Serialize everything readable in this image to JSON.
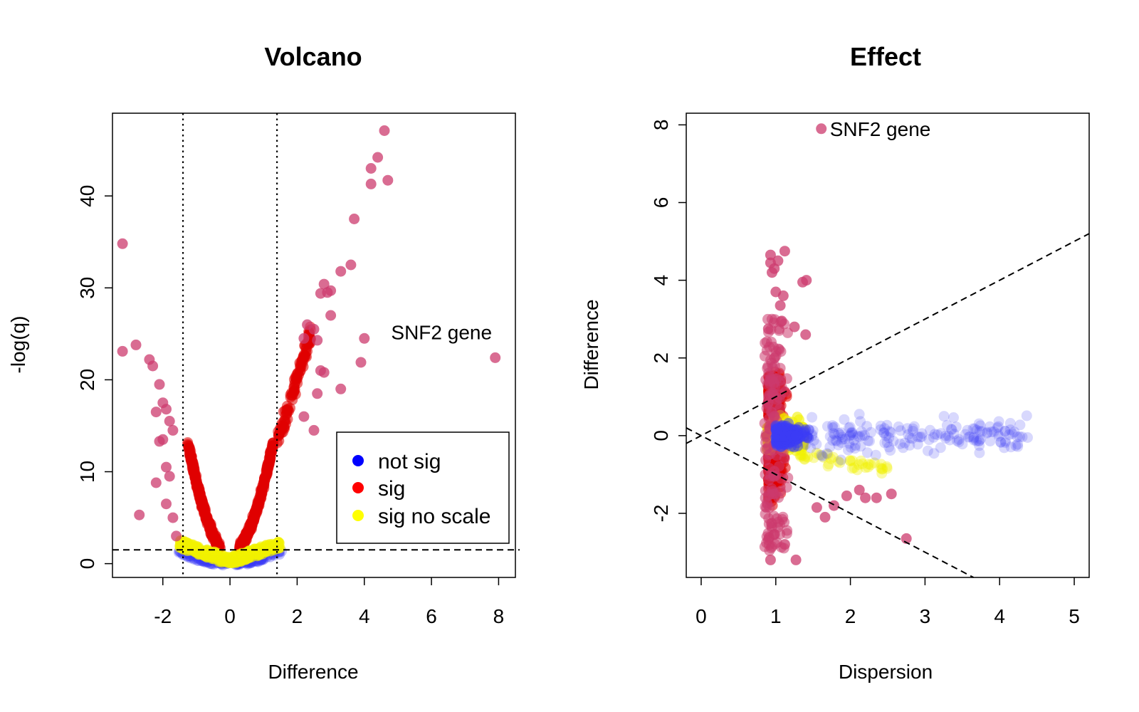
{
  "colors": {
    "not_sig": "#3b3bf5",
    "sig": "#e00000",
    "sig_no_scale": "#f2f200",
    "snf2": "#cc3b6e",
    "legend_not_sig": "#0000ff",
    "legend_sig": "#ff0000",
    "legend_sig_no_scale": "#ffff00"
  },
  "chart_data": [
    {
      "type": "scatter",
      "title": "Volcano",
      "xlabel": "Difference",
      "ylabel": "-log(q)",
      "xlim": [
        -3.5,
        8.5
      ],
      "ylim": [
        -1.5,
        49
      ],
      "xticks": [
        "-2",
        "0",
        "2",
        "4",
        "6",
        "8"
      ],
      "xtick_values": [
        -2,
        0,
        2,
        4,
        6,
        8
      ],
      "yticks": [
        "0",
        "10",
        "20",
        "30",
        "40"
      ],
      "ytick_values": [
        0,
        10,
        20,
        30,
        40
      ],
      "reference_lines": {
        "vertical_dotted": [
          -1.4,
          1.4
        ],
        "horizontal_dashed": [
          1.5
        ]
      },
      "legend": {
        "position": "bottom-right",
        "entries": [
          {
            "label": "not sig",
            "color_key": "legend_not_sig"
          },
          {
            "label": "sig",
            "color_key": "legend_sig"
          },
          {
            "label": "sig no scale",
            "color_key": "legend_sig_no_scale"
          }
        ]
      },
      "annotation": {
        "text": "SNF2 gene",
        "x": 6.3,
        "y": 25.2
      },
      "highlight_points": [
        [
          -3.2,
          34.8
        ],
        [
          -3.2,
          23.1
        ],
        [
          -2.8,
          23.8
        ],
        [
          -2.7,
          5.3
        ],
        [
          -2.4,
          22.2
        ],
        [
          -2.3,
          21.5
        ],
        [
          -2.1,
          19.5
        ],
        [
          -2.0,
          17.5
        ],
        [
          -1.9,
          16.8
        ],
        [
          -2.2,
          16.5
        ],
        [
          -2.0,
          13.5
        ],
        [
          -1.8,
          15.5
        ],
        [
          -1.7,
          14.5
        ],
        [
          -2.1,
          13.3
        ],
        [
          -1.9,
          10.5
        ],
        [
          -2.2,
          8.8
        ],
        [
          -1.8,
          9.5
        ],
        [
          -1.9,
          6.5
        ],
        [
          -1.7,
          5.0
        ],
        [
          -1.6,
          3.0
        ],
        [
          2.3,
          26.0
        ],
        [
          2.5,
          25.5
        ],
        [
          2.2,
          24.5
        ],
        [
          2.6,
          24.3
        ],
        [
          2.7,
          29.4
        ],
        [
          2.8,
          30.4
        ],
        [
          2.9,
          29.5
        ],
        [
          3.0,
          29.7
        ],
        [
          3.0,
          27.0
        ],
        [
          3.3,
          31.8
        ],
        [
          3.6,
          32.5
        ],
        [
          3.7,
          37.5
        ],
        [
          4.0,
          24.5
        ],
        [
          3.9,
          21.9
        ],
        [
          3.3,
          19.0
        ],
        [
          2.7,
          21.0
        ],
        [
          2.8,
          20.8
        ],
        [
          2.6,
          18.5
        ],
        [
          2.2,
          16.0
        ],
        [
          2.5,
          14.5
        ],
        [
          4.2,
          43.0
        ],
        [
          4.2,
          41.3
        ],
        [
          4.4,
          44.2
        ],
        [
          4.6,
          47.1
        ],
        [
          4.7,
          41.7
        ],
        [
          7.9,
          22.4
        ]
      ],
      "series": [
        {
          "name": "not sig",
          "color_key": "not_sig",
          "description": "near zero, |Difference| < 1.4"
        },
        {
          "name": "sig",
          "color_key": "sig",
          "description": "V-shaped arms"
        },
        {
          "name": "sig no scale",
          "color_key": "sig_no_scale",
          "description": "bottom of V"
        }
      ]
    },
    {
      "type": "scatter",
      "title": "Effect",
      "xlabel": "Dispersion",
      "ylabel": "Difference",
      "xlim": [
        -0.2,
        5.2
      ],
      "ylim": [
        -3.65,
        8.3
      ],
      "xticks": [
        "0",
        "1",
        "2",
        "3",
        "4",
        "5"
      ],
      "xtick_values": [
        0,
        1,
        2,
        3,
        4,
        5
      ],
      "yticks": [
        "-2",
        "0",
        "2",
        "4",
        "6",
        "8"
      ],
      "ytick_values": [
        -2,
        0,
        2,
        4,
        6,
        8
      ],
      "reference_lines": {
        "dashed_slopes": [
          1.0,
          -1.0
        ]
      },
      "annotation": {
        "text": "SNF2 gene",
        "x": 1.61,
        "y": 7.9
      },
      "highlight_points": [
        [
          0.93,
          4.65
        ],
        [
          0.93,
          4.45
        ],
        [
          0.95,
          4.2
        ],
        [
          0.98,
          4.3
        ],
        [
          1.12,
          4.75
        ],
        [
          1.03,
          4.5
        ],
        [
          1.36,
          3.95
        ],
        [
          1.41,
          4.0
        ],
        [
          1.1,
          3.6
        ],
        [
          1.06,
          3.35
        ],
        [
          1.0,
          3.7
        ],
        [
          1.08,
          2.95
        ],
        [
          1.25,
          2.8
        ],
        [
          1.4,
          2.6
        ],
        [
          0.9,
          2.75
        ],
        [
          1.27,
          -3.2
        ],
        [
          0.93,
          -3.2
        ],
        [
          1.12,
          -2.8
        ],
        [
          2.75,
          -2.65
        ],
        [
          1.66,
          -2.1
        ],
        [
          2.35,
          -1.6
        ],
        [
          2.55,
          -1.5
        ],
        [
          2.2,
          -1.6
        ],
        [
          2.12,
          -1.4
        ],
        [
          1.78,
          -1.8
        ],
        [
          1.55,
          -1.85
        ],
        [
          1.95,
          -1.55
        ],
        [
          1.61,
          7.9
        ]
      ],
      "series": [
        {
          "name": "sig",
          "color_key": "snf2",
          "description": "column near Dispersion 1"
        },
        {
          "name": "sig no scale",
          "color_key": "sig_no_scale",
          "description": "near Difference 0"
        },
        {
          "name": "not sig",
          "color_key": "not_sig",
          "description": "spread to Dispersion 4.4"
        }
      ]
    }
  ]
}
